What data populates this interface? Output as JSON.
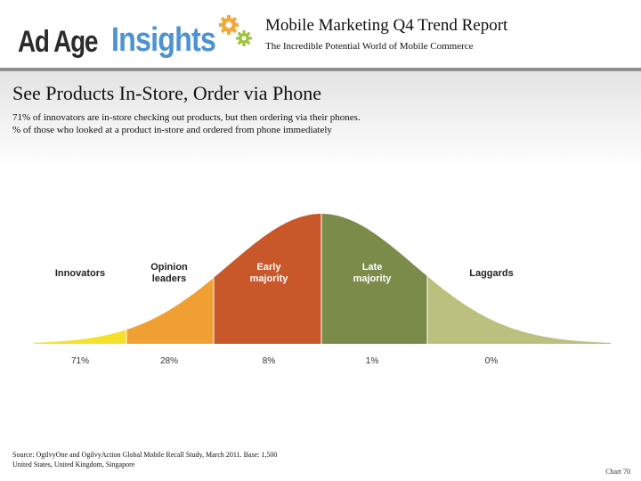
{
  "header": {
    "logo_left": "Ad Age",
    "logo_right": "Insights",
    "report_title": "Mobile Marketing Q4 Trend Report",
    "report_subtitle": "The Incredible Potential World of Mobile Commerce"
  },
  "slide": {
    "title": "See Products In-Store, Order via Phone",
    "subtitle_lines": [
      "71% of innovators are in-store checking out products, but then ordering via their phones.",
      "% of those who looked at a product in-store and ordered from phone immediately"
    ]
  },
  "chart_data": {
    "type": "area",
    "title": "See Products In-Store, Order via Phone",
    "description": "% of those who looked at a product in-store and ordered from phone immediately",
    "categories": [
      "Innovators",
      "Opinion leaders",
      "Early majority",
      "Late majority",
      "Laggards"
    ],
    "values": [
      71,
      28,
      8,
      1,
      0
    ],
    "value_labels": [
      "71%",
      "28%",
      "8%",
      "1%",
      "0%"
    ],
    "category_label_lines": [
      [
        "Innovators"
      ],
      [
        "Opinion",
        "leaders"
      ],
      [
        "Early",
        "majority"
      ],
      [
        "Late",
        "majority"
      ],
      [
        "Laggards"
      ]
    ],
    "colors": [
      "#f5e12a",
      "#f0a032",
      "#c8572a",
      "#7b8c4a",
      "#bcc07e"
    ],
    "label_colors": [
      "#222222",
      "#222222",
      "#ffffff",
      "#ffffff",
      "#222222"
    ],
    "xlabel": "",
    "ylabel": ""
  },
  "footer": {
    "source_lines": [
      "Source: OgilvyOne and OgilvyAction Global Mobile Recall Study, March 2011. Base: 1,500",
      "United States, United Kingdom, Singapore"
    ],
    "chart_number": "Chart 70"
  }
}
